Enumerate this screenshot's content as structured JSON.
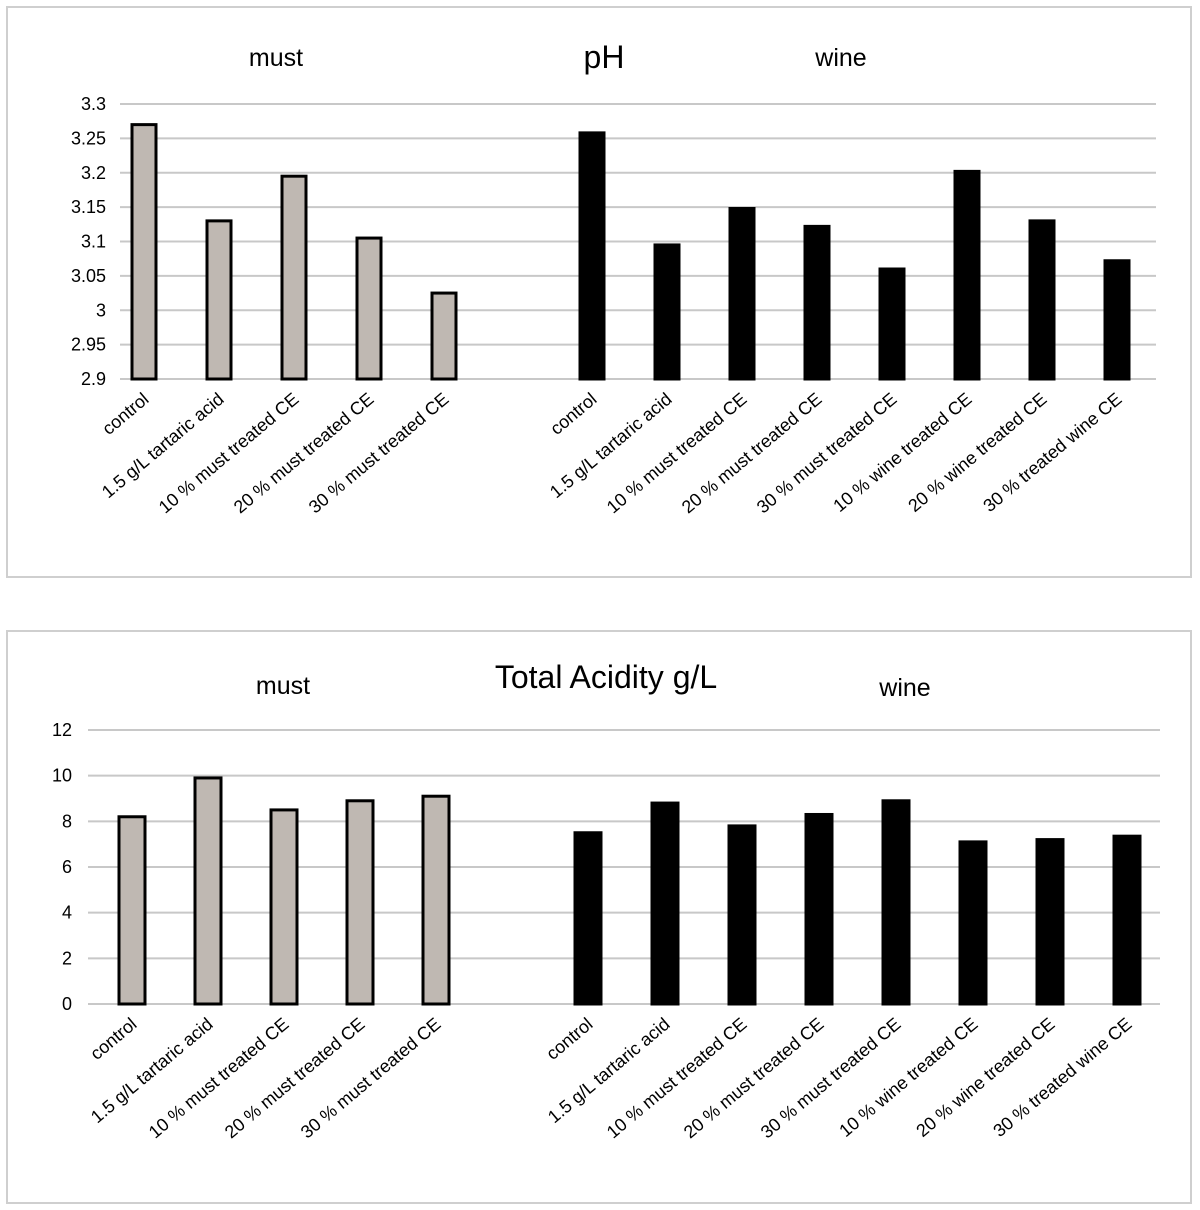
{
  "chart_data": [
    {
      "type": "bar",
      "title": "pH",
      "group_labels": [
        "must",
        "wine"
      ],
      "ylim": [
        2.9,
        3.3
      ],
      "yticks": [
        "2.9",
        "2.95",
        "3",
        "3.05",
        "3.1",
        "3.15",
        "3.2",
        "3.25",
        "3.3"
      ],
      "grid": true,
      "colors": {
        "must": "#bfb8b2",
        "wine": "#000000"
      },
      "series": [
        {
          "group": "must",
          "categories": [
            "control",
            "1.5 g/L tartaric acid",
            "10 % must treated CE",
            "20 % must treated CE",
            "30 % must treated CE"
          ],
          "values": [
            3.27,
            3.13,
            3.195,
            3.105,
            3.025
          ]
        },
        {
          "group": "wine",
          "categories": [
            "control",
            "1.5 g/L tartaric acid",
            "10 % must treated CE",
            "20 % must treated CE",
            "30 % must treated CE",
            "10 % wine treated CE",
            "20 % wine treated CE",
            "30 % treated wine CE"
          ],
          "values": [
            3.258,
            3.095,
            3.148,
            3.122,
            3.06,
            3.202,
            3.13,
            3.072
          ]
        }
      ]
    },
    {
      "type": "bar",
      "title": "Total Acidity g/L",
      "group_labels": [
        "must",
        "wine"
      ],
      "ylim": [
        0,
        12
      ],
      "yticks": [
        "0",
        "2",
        "4",
        "6",
        "8",
        "10",
        "12"
      ],
      "grid": true,
      "colors": {
        "must": "#bfb8b2",
        "wine": "#000000"
      },
      "series": [
        {
          "group": "must",
          "categories": [
            "control",
            "1.5 g/L tartaric acid",
            "10 % must treated CE",
            "20 % must treated CE",
            "30 % must treated CE"
          ],
          "values": [
            8.2,
            9.9,
            8.5,
            8.9,
            9.1
          ]
        },
        {
          "group": "wine",
          "categories": [
            "control",
            "1.5 g/L tartaric acid",
            "10 % must treated CE",
            "20 % must treated CE",
            "30 % must treated CE",
            "10 % wine treated CE",
            "20 % wine treated CE",
            "30 % treated wine CE"
          ],
          "values": [
            7.5,
            8.8,
            7.8,
            8.3,
            8.9,
            7.1,
            7.2,
            7.35
          ]
        }
      ]
    }
  ]
}
